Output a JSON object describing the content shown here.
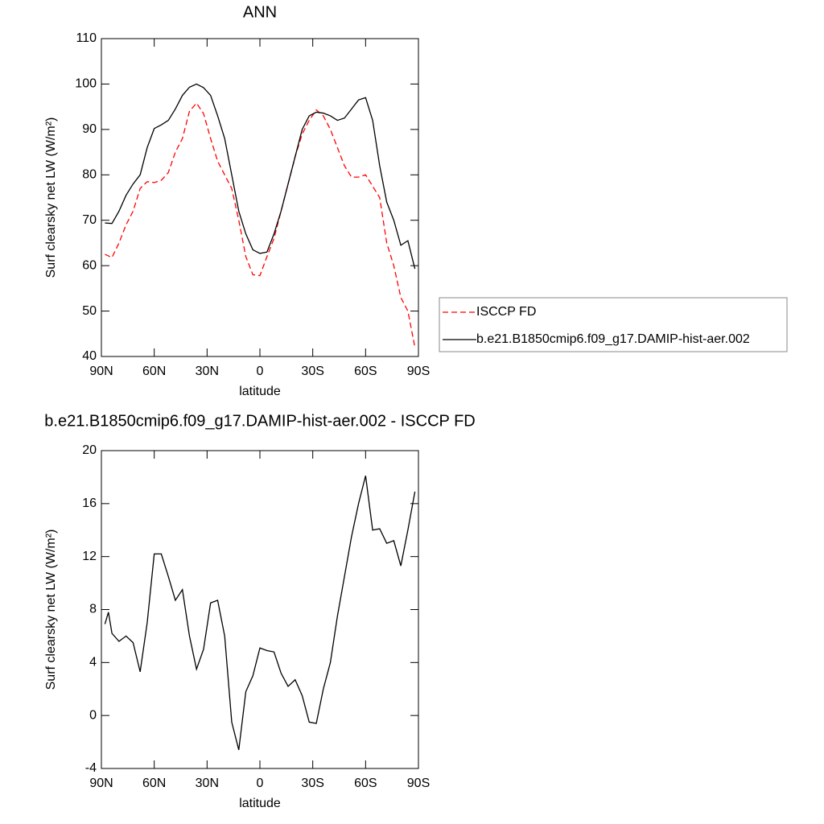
{
  "chart_data": [
    {
      "type": "line",
      "title": "ANN",
      "xlabel": "latitude",
      "ylabel": "Surf clearsky net LW (W/m²)",
      "xlim": [
        90,
        -90
      ],
      "xticks": [
        {
          "value": 90,
          "label": "90N"
        },
        {
          "value": 60,
          "label": "60N"
        },
        {
          "value": 30,
          "label": "30N"
        },
        0,
        {
          "value": -30,
          "label": "30S"
        },
        {
          "value": -60,
          "label": "60S"
        },
        {
          "value": -90,
          "label": "90S"
        }
      ],
      "ylim": [
        40,
        110
      ],
      "yticks": [
        40,
        50,
        60,
        70,
        80,
        90,
        100,
        110
      ],
      "x": [
        88,
        84,
        80,
        76,
        72,
        68,
        64,
        60,
        56,
        52,
        48,
        44,
        40,
        36,
        32,
        28,
        24,
        20,
        16,
        12,
        8,
        4,
        0,
        -4,
        -8,
        -12,
        -16,
        -20,
        -24,
        -28,
        -32,
        -36,
        -40,
        -44,
        -48,
        -52,
        -56,
        -60,
        -64,
        -68,
        -72,
        -76,
        -80,
        -84,
        -88
      ],
      "legend": "right",
      "series": [
        {
          "name": "ISCCP FD",
          "color": "#ff0000",
          "dashed": true,
          "values": [
            62.5,
            61.8,
            65,
            69,
            72,
            77,
            78.5,
            78.3,
            78.8,
            80.5,
            85,
            88,
            94,
            95.8,
            93.5,
            88,
            83,
            80,
            77,
            70,
            62,
            58,
            57.8,
            62,
            66,
            72,
            78,
            84,
            89,
            92,
            94.3,
            93,
            90,
            86,
            82,
            79.5,
            79.5,
            80,
            77.5,
            75,
            65,
            60,
            53,
            50,
            42
          ]
        },
        {
          "name": "b.e21.B1850cmip6.f09_g17.DAMIP-hist-aer.002",
          "color": "#000000",
          "dashed": false,
          "values": [
            69.4,
            69.3,
            72,
            75.5,
            78,
            80,
            86,
            90.2,
            91,
            92,
            94.5,
            97.5,
            99.3,
            100,
            99.2,
            97.5,
            93,
            88,
            80,
            72,
            67,
            63.5,
            62.7,
            63,
            67,
            72,
            78,
            84,
            90,
            93,
            93.8,
            93.6,
            93,
            92,
            92.5,
            94.5,
            96.5,
            97,
            92,
            82,
            74,
            70,
            64.5,
            65.5,
            59.3
          ]
        }
      ]
    },
    {
      "type": "line",
      "title": "b.e21.B1850cmip6.f09_g17.DAMIP-hist-aer.002 - ISCCP FD",
      "xlabel": "latitude",
      "ylabel": "Surf clearsky net LW (W/m²)",
      "xlim": [
        90,
        -90
      ],
      "xticks": [
        {
          "value": 90,
          "label": "90N"
        },
        {
          "value": 60,
          "label": "60N"
        },
        {
          "value": 30,
          "label": "30N"
        },
        0,
        {
          "value": -30,
          "label": "30S"
        },
        {
          "value": -60,
          "label": "60S"
        },
        {
          "value": -90,
          "label": "90S"
        }
      ],
      "ylim": [
        -4,
        20
      ],
      "yticks": [
        -4,
        0,
        4,
        8,
        12,
        16,
        20
      ],
      "x": [
        88,
        86,
        84,
        80,
        76,
        72,
        68,
        64,
        60,
        56,
        52,
        48,
        44,
        40,
        36,
        32,
        28,
        24,
        20,
        16,
        12,
        8,
        4,
        0,
        -4,
        -8,
        -12,
        -16,
        -20,
        -24,
        -28,
        -32,
        -36,
        -40,
        -44,
        -48,
        -52,
        -56,
        -60,
        -64,
        -68,
        -72,
        -76,
        -80,
        -84,
        -88
      ],
      "series": [
        {
          "color": "#000000",
          "dashed": false,
          "values": [
            6.9,
            7.8,
            6.2,
            5.6,
            6,
            5.5,
            3.3,
            7,
            12.2,
            12.2,
            10.5,
            8.7,
            9.5,
            6,
            3.5,
            5,
            8.5,
            8.7,
            6,
            -0.5,
            -2.6,
            1.8,
            3,
            5.1,
            4.9,
            4.8,
            3.2,
            2.2,
            2.7,
            1.5,
            -0.5,
            -0.6,
            2,
            4,
            7.5,
            10.5,
            13.5,
            16,
            18.1,
            14,
            14.1,
            13,
            13.2,
            11.3,
            14,
            16.9
          ]
        }
      ]
    }
  ]
}
